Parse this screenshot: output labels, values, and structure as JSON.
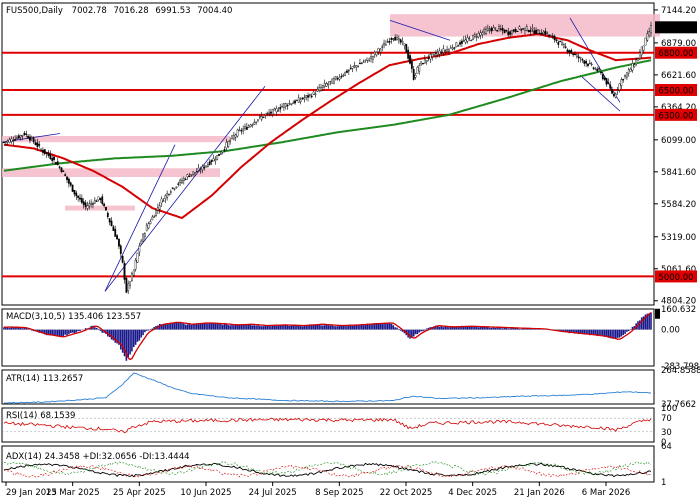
{
  "chart_data": {
    "type": "candlestick",
    "symbol": "FUS500",
    "timeframe": "Daily",
    "ohlc": {
      "open": "7002.78",
      "high": "7016.28",
      "low": "6991.53",
      "close": "7004.40"
    },
    "price_axis": {
      "ticks": [
        "7144.20",
        "6879.00",
        "6621.60",
        "6364.20",
        "6099.00",
        "5841.60",
        "5584.20",
        "5319.00",
        "5061.60",
        "4804.20"
      ],
      "range": [
        4770,
        7200
      ]
    },
    "current_price": "7004.40",
    "horizontal_levels": [
      {
        "price": 6800,
        "label": "6800.00"
      },
      {
        "price": 6500,
        "label": "6500.00"
      },
      {
        "price": 6300,
        "label": "6300.00"
      },
      {
        "price": 5000,
        "label": "5000.00"
      }
    ],
    "x_axis_dates": [
      "29 Jan 2025",
      "13 Mar 2025",
      "25 Apr 2025",
      "10 Jun 2025",
      "24 Jul 2025",
      "8 Sep 2025",
      "22 Oct 2025",
      "4 Dec 2025",
      "21 Jan 2026",
      "6 Mar 2026"
    ],
    "price_path": [
      [
        0,
        6080
      ],
      [
        6,
        6110
      ],
      [
        11,
        6150
      ],
      [
        15,
        6100
      ],
      [
        20,
        6020
      ],
      [
        26,
        5950
      ],
      [
        31,
        5860
      ],
      [
        35,
        5750
      ],
      [
        39,
        5650
      ],
      [
        44,
        5560
      ],
      [
        48,
        5600
      ],
      [
        52,
        5630
      ],
      [
        56,
        5480
      ],
      [
        61,
        5300
      ],
      [
        64,
        5100
      ],
      [
        66,
        4880
      ],
      [
        70,
        5050
      ],
      [
        73,
        5250
      ],
      [
        77,
        5400
      ],
      [
        81,
        5500
      ],
      [
        85,
        5610
      ],
      [
        90,
        5700
      ],
      [
        95,
        5760
      ],
      [
        100,
        5820
      ],
      [
        106,
        5860
      ],
      [
        111,
        5920
      ],
      [
        116,
        5980
      ],
      [
        121,
        6080
      ],
      [
        126,
        6160
      ],
      [
        131,
        6200
      ],
      [
        136,
        6260
      ],
      [
        141,
        6300
      ],
      [
        146,
        6330
      ],
      [
        151,
        6380
      ],
      [
        156,
        6400
      ],
      [
        161,
        6430
      ],
      [
        167,
        6470
      ],
      [
        172,
        6530
      ],
      [
        177,
        6570
      ],
      [
        182,
        6620
      ],
      [
        188,
        6680
      ],
      [
        193,
        6720
      ],
      [
        198,
        6760
      ],
      [
        204,
        6850
      ],
      [
        210,
        6930
      ],
      [
        216,
        6860
      ],
      [
        219,
        6720
      ],
      [
        221,
        6600
      ],
      [
        224,
        6700
      ],
      [
        229,
        6760
      ],
      [
        234,
        6800
      ],
      [
        240,
        6830
      ],
      [
        246,
        6880
      ],
      [
        251,
        6910
      ],
      [
        256,
        6950
      ],
      [
        262,
        6990
      ],
      [
        267,
        6990
      ],
      [
        272,
        6960
      ],
      [
        277,
        6990
      ],
      [
        282,
        6990
      ],
      [
        287,
        6970
      ],
      [
        292,
        6960
      ],
      [
        297,
        6910
      ],
      [
        301,
        6860
      ],
      [
        306,
        6800
      ],
      [
        311,
        6750
      ],
      [
        316,
        6700
      ],
      [
        321,
        6650
      ],
      [
        325,
        6560
      ],
      [
        329,
        6450
      ],
      [
        333,
        6580
      ],
      [
        337,
        6650
      ],
      [
        342,
        6760
      ],
      [
        346,
        6900
      ],
      [
        349,
        7004
      ]
    ],
    "ma_red_path": [
      [
        0,
        6060
      ],
      [
        16,
        6030
      ],
      [
        32,
        5950
      ],
      [
        48,
        5850
      ],
      [
        64,
        5720
      ],
      [
        80,
        5550
      ],
      [
        96,
        5470
      ],
      [
        112,
        5650
      ],
      [
        128,
        5880
      ],
      [
        144,
        6080
      ],
      [
        160,
        6250
      ],
      [
        176,
        6410
      ],
      [
        192,
        6560
      ],
      [
        208,
        6700
      ],
      [
        224,
        6750
      ],
      [
        240,
        6790
      ],
      [
        256,
        6870
      ],
      [
        272,
        6920
      ],
      [
        288,
        6950
      ],
      [
        304,
        6900
      ],
      [
        316,
        6820
      ],
      [
        330,
        6740
      ],
      [
        349,
        6760
      ]
    ],
    "ma_green_path": [
      [
        0,
        5850
      ],
      [
        30,
        5910
      ],
      [
        60,
        5950
      ],
      [
        90,
        5970
      ],
      [
        120,
        6010
      ],
      [
        150,
        6080
      ],
      [
        180,
        6160
      ],
      [
        210,
        6220
      ],
      [
        240,
        6300
      ],
      [
        270,
        6430
      ],
      [
        300,
        6570
      ],
      [
        330,
        6680
      ],
      [
        349,
        6740
      ]
    ],
    "macd": {
      "label": "MACD(3,10,5)",
      "values_text": "135.406 123.557",
      "ticks": [
        "160.632",
        "0.00",
        "-283.798"
      ],
      "range": [
        -283.798,
        160.632
      ],
      "hist_path": [
        [
          0,
          20
        ],
        [
          10,
          15
        ],
        [
          20,
          -30
        ],
        [
          30,
          -55
        ],
        [
          40,
          -15
        ],
        [
          48,
          30
        ],
        [
          56,
          -50
        ],
        [
          62,
          -120
        ],
        [
          66,
          -240
        ],
        [
          70,
          -140
        ],
        [
          76,
          -20
        ],
        [
          84,
          40
        ],
        [
          92,
          55
        ],
        [
          100,
          40
        ],
        [
          108,
          50
        ],
        [
          116,
          45
        ],
        [
          124,
          35
        ],
        [
          132,
          40
        ],
        [
          140,
          30
        ],
        [
          150,
          35
        ],
        [
          160,
          30
        ],
        [
          170,
          40
        ],
        [
          180,
          30
        ],
        [
          190,
          35
        ],
        [
          200,
          45
        ],
        [
          208,
          50
        ],
        [
          214,
          -10
        ],
        [
          219,
          -70
        ],
        [
          224,
          -20
        ],
        [
          232,
          30
        ],
        [
          240,
          20
        ],
        [
          250,
          25
        ],
        [
          260,
          20
        ],
        [
          270,
          15
        ],
        [
          280,
          10
        ],
        [
          290,
          5
        ],
        [
          300,
          -15
        ],
        [
          310,
          -30
        ],
        [
          318,
          -40
        ],
        [
          325,
          -55
        ],
        [
          330,
          -75
        ],
        [
          336,
          -20
        ],
        [
          342,
          60
        ],
        [
          346,
          120
        ],
        [
          349,
          135
        ]
      ]
    },
    "atr": {
      "label": "ATR(14)",
      "value_text": "113.2657",
      "ticks": [
        "264.8588",
        "37.7662"
      ],
      "range": [
        37.7662,
        264.8588
      ],
      "path": [
        [
          0,
          45
        ],
        [
          20,
          50
        ],
        [
          40,
          65
        ],
        [
          55,
          80
        ],
        [
          64,
          170
        ],
        [
          70,
          245
        ],
        [
          80,
          200
        ],
        [
          90,
          150
        ],
        [
          100,
          110
        ],
        [
          120,
          80
        ],
        [
          150,
          62
        ],
        [
          180,
          55
        ],
        [
          210,
          60
        ],
        [
          220,
          90
        ],
        [
          235,
          75
        ],
        [
          260,
          80
        ],
        [
          280,
          90
        ],
        [
          300,
          95
        ],
        [
          320,
          105
        ],
        [
          335,
          120
        ],
        [
          349,
          113
        ]
      ]
    },
    "rsi": {
      "label": "RSI(14)",
      "value_text": "68.1539",
      "ticks": [
        "100",
        "70",
        "30",
        "0"
      ],
      "range": [
        0,
        100
      ],
      "path": [
        [
          0,
          55
        ],
        [
          20,
          50
        ],
        [
          40,
          42
        ],
        [
          56,
          38
        ],
        [
          64,
          28
        ],
        [
          70,
          45
        ],
        [
          80,
          60
        ],
        [
          100,
          62
        ],
        [
          130,
          65
        ],
        [
          160,
          66
        ],
        [
          190,
          64
        ],
        [
          210,
          66
        ],
        [
          219,
          40
        ],
        [
          230,
          55
        ],
        [
          260,
          60
        ],
        [
          280,
          58
        ],
        [
          300,
          48
        ],
        [
          320,
          44
        ],
        [
          330,
          35
        ],
        [
          340,
          55
        ],
        [
          349,
          68
        ]
      ]
    },
    "adx": {
      "label": "ADX(14)",
      "values_text": "24.3458 +DI:32.0656 -DI:13.4444",
      "ticks": [
        "64",
        "1"
      ],
      "range": [
        1,
        64
      ]
    }
  }
}
